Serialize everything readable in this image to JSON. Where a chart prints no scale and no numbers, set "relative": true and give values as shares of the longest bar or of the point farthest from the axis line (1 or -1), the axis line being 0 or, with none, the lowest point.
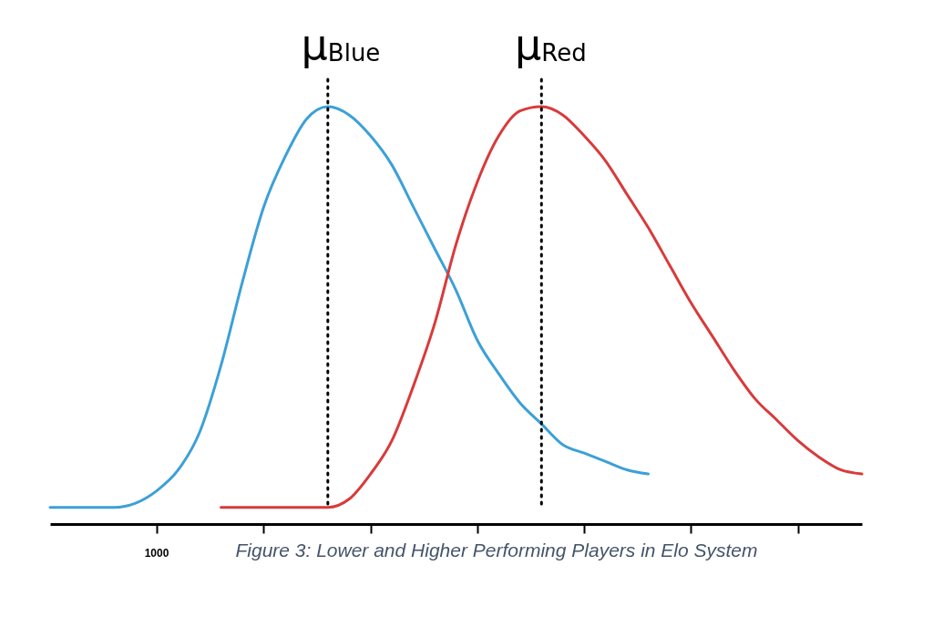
{
  "chart_data": {
    "type": "line",
    "relative": true,
    "categories": [
      null,
      null,
      null,
      null,
      null,
      null,
      null,
      null,
      null,
      null,
      null,
      null,
      null,
      null,
      null,
      null,
      null,
      null,
      null,
      null,
      null,
      null,
      null,
      null,
      null,
      null,
      null,
      null,
      null,
      null,
      null,
      null,
      null,
      null,
      null,
      null,
      null,
      null,
      null
    ],
    "series": [
      {
        "color": "#3ca0d8",
        "values": [
          0.04,
          0.04,
          0.04,
          0.04,
          0.05,
          0.08,
          0.13,
          0.22,
          0.38,
          0.58,
          0.76,
          0.88,
          0.97,
          1,
          0.98,
          0.93,
          0.86,
          0.76,
          0.66,
          0.56,
          0.44,
          0.36,
          0.29,
          0.24,
          0.19,
          0.17,
          0.15,
          0.13,
          0.12,
          null,
          null,
          null,
          null,
          null,
          null,
          null,
          null,
          null,
          null
        ]
      },
      {
        "color": "#d93a3a",
        "values": [
          null,
          null,
          null,
          null,
          null,
          null,
          null,
          null,
          0.04,
          0.04,
          0.04,
          0.04,
          0.04,
          0.04,
          0.06,
          0.12,
          0.2,
          0.33,
          0.48,
          0.67,
          0.82,
          0.93,
          0.99,
          1,
          0.98,
          0.93,
          0.87,
          0.79,
          0.71,
          0.62,
          0.53,
          0.45,
          0.37,
          0.3,
          0.25,
          0.2,
          0.16,
          0.13,
          0.12
        ]
      }
    ],
    "annotations": [
      "μ$_{Blue}$",
      "μ$_{Red}$",
      "1000",
      "Figure 3: Lower and Higher Performing Players in Elo System"
    ],
    "grid": false,
    "marker": "none",
    "line_style": "solid"
  }
}
